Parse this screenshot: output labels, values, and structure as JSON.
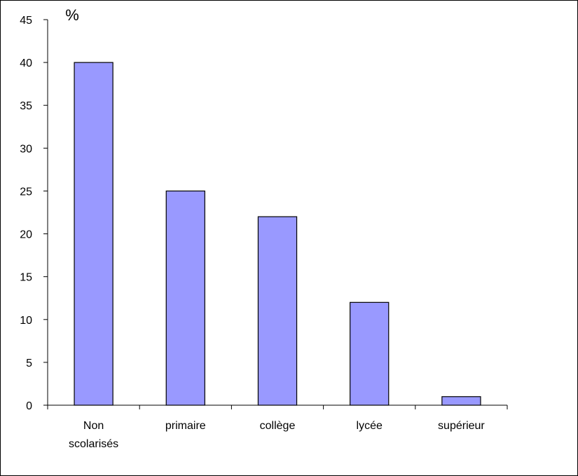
{
  "chart_data": {
    "type": "bar",
    "title": "",
    "xlabel": "",
    "ylabel": "%",
    "categories": [
      "Non scolarisés",
      "primaire",
      "collège",
      "lycée",
      "supérieur"
    ],
    "category_lines": [
      [
        "Non",
        "scolarisés"
      ],
      [
        "primaire"
      ],
      [
        "collège"
      ],
      [
        "lycée"
      ],
      [
        "supérieur"
      ]
    ],
    "values": [
      40,
      25,
      22,
      12,
      1
    ],
    "ylim": [
      0,
      45
    ],
    "yticks": [
      0,
      5,
      10,
      15,
      20,
      25,
      30,
      35,
      40,
      45
    ],
    "grid": false,
    "legend": "none",
    "bar_color": "#9999ff",
    "bar_edge_color": "#000000"
  }
}
